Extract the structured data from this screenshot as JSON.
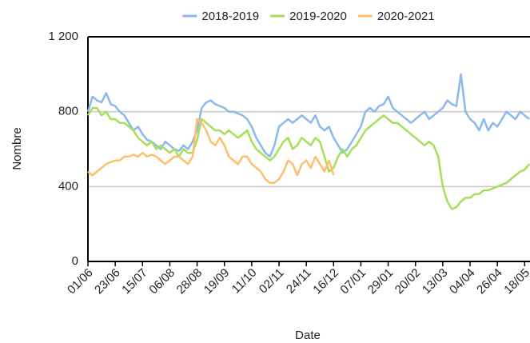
{
  "chart_data": {
    "type": "line",
    "x_label": "Date",
    "y_label": "Nombre",
    "categories": [
      "01/06",
      null,
      null,
      null,
      null,
      null,
      "23/06",
      null,
      null,
      null,
      null,
      null,
      "15/07",
      null,
      null,
      null,
      null,
      null,
      "06/08",
      null,
      null,
      null,
      null,
      null,
      "28/08",
      null,
      null,
      null,
      null,
      null,
      "19/09",
      null,
      null,
      null,
      null,
      null,
      "11/10",
      null,
      null,
      null,
      null,
      null,
      "02/11",
      null,
      null,
      null,
      null,
      null,
      "24/11",
      null,
      null,
      null,
      null,
      null,
      "16/12",
      null,
      null,
      null,
      null,
      null,
      "07/01",
      null,
      null,
      null,
      null,
      null,
      "29/01",
      null,
      null,
      null,
      null,
      null,
      "20/02",
      null,
      null,
      null,
      null,
      null,
      "13/03",
      null,
      null,
      null,
      null,
      null,
      "04/04",
      null,
      null,
      null,
      null,
      null,
      "26/04",
      null,
      null,
      null,
      null,
      null,
      "18/05",
      null
    ],
    "series": [
      {
        "name": "2018-2019",
        "color": "#8db8ec",
        "values": [
          800,
          880,
          860,
          850,
          900,
          840,
          830,
          800,
          780,
          740,
          700,
          720,
          680,
          650,
          640,
          620,
          600,
          640,
          620,
          600,
          590,
          620,
          600,
          640,
          700,
          820,
          850,
          860,
          840,
          830,
          820,
          800,
          800,
          790,
          780,
          760,
          720,
          660,
          620,
          580,
          560,
          620,
          720,
          740,
          760,
          740,
          760,
          780,
          760,
          740,
          780,
          720,
          700,
          720,
          660,
          620,
          580,
          600,
          640,
          680,
          720,
          800,
          820,
          800,
          830,
          840,
          880,
          820,
          800,
          780,
          760,
          740,
          760,
          780,
          800,
          760,
          780,
          800,
          820,
          860,
          840,
          830,
          1000,
          800,
          760,
          740,
          700,
          760,
          700,
          740,
          720,
          760,
          800,
          780,
          760,
          800,
          780,
          760
        ]
      },
      {
        "name": "2019-2020",
        "color": "#a5e05a",
        "values": [
          780,
          820,
          820,
          780,
          800,
          760,
          760,
          740,
          740,
          720,
          700,
          660,
          640,
          620,
          640,
          600,
          620,
          600,
          580,
          600,
          560,
          600,
          580,
          580,
          650,
          760,
          740,
          720,
          700,
          700,
          680,
          700,
          680,
          660,
          680,
          700,
          640,
          600,
          580,
          560,
          540,
          560,
          600,
          640,
          660,
          600,
          620,
          660,
          640,
          620,
          660,
          640,
          560,
          480,
          500,
          560,
          600,
          560,
          600,
          620,
          660,
          700,
          720,
          740,
          760,
          780,
          760,
          740,
          740,
          720,
          700,
          680,
          660,
          640,
          620,
          640,
          620,
          560,
          400,
          320,
          280,
          290,
          320,
          340,
          340,
          360,
          360,
          380,
          380,
          390,
          400,
          410,
          420,
          440,
          460,
          480,
          490,
          520
        ]
      },
      {
        "name": "2020-2021",
        "color": "#ffbe6e",
        "values": [
          480,
          460,
          480,
          500,
          520,
          530,
          540,
          540,
          560,
          560,
          570,
          560,
          580,
          560,
          570,
          560,
          540,
          520,
          540,
          560,
          560,
          540,
          520,
          560,
          760,
          740,
          700,
          640,
          620,
          660,
          620,
          560,
          540,
          520,
          560,
          560,
          520,
          500,
          480,
          440,
          420,
          420,
          440,
          480,
          540,
          520,
          460,
          520,
          540,
          500,
          560,
          520,
          480,
          540,
          460,
          null,
          null,
          null,
          null,
          null,
          null,
          null,
          null,
          null,
          null,
          null,
          null,
          null,
          null,
          null,
          null,
          null,
          null,
          null,
          null,
          null,
          null,
          null,
          null,
          null,
          null,
          null,
          null,
          null,
          null,
          null,
          null,
          null,
          null,
          null,
          null,
          null,
          null,
          null,
          null,
          null,
          null,
          null
        ]
      }
    ],
    "ylim": [
      0,
      1200
    ],
    "yticks": [
      0,
      400,
      800,
      {
        "value": 1200,
        "label": "1 200"
      }
    ],
    "grid": true,
    "legend": "top"
  }
}
